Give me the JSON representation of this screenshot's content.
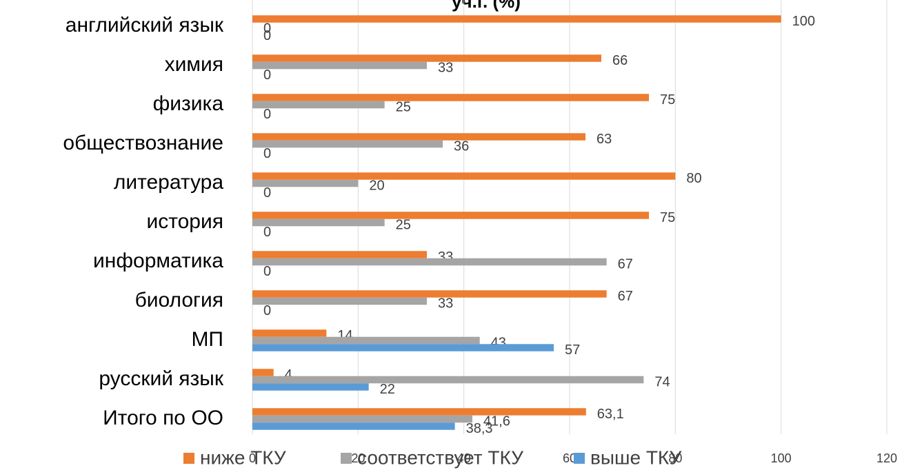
{
  "chart_data": {
    "type": "hbar",
    "title": "уч.г. (%)",
    "categories": [
      "английский язык",
      "химия",
      "физика",
      "обществознание",
      "литература",
      "история",
      "информатика",
      "биология",
      "МП",
      "русский язык",
      "Итого по ОО"
    ],
    "series": [
      {
        "name": "ниже ТКУ",
        "color": "#ED7D31",
        "values": [
          100,
          66,
          75,
          63,
          80,
          75,
          33,
          67,
          14,
          4,
          63.1
        ],
        "value_labels": [
          "100",
          "66",
          "75",
          "63",
          "80",
          "75",
          "33",
          "67",
          "14",
          "4",
          "63,1"
        ]
      },
      {
        "name": "соответствует ТКУ",
        "color": "#A5A5A5",
        "values": [
          0,
          33,
          25,
          36,
          20,
          25,
          67,
          33,
          43,
          74,
          41.6
        ],
        "value_labels": [
          "0",
          "33",
          "25",
          "36",
          "20",
          "25",
          "67",
          "33",
          "43",
          "74",
          "41,6"
        ]
      },
      {
        "name": "выше ТКУ",
        "color": "#5B9BD5",
        "values": [
          0,
          0,
          0,
          0,
          0,
          0,
          0,
          0,
          57,
          22,
          38.3
        ],
        "value_labels": [
          "0",
          "0",
          "0",
          "0",
          "0",
          "0",
          "0",
          "0",
          "57",
          "22",
          "38,3"
        ]
      }
    ],
    "xlim": [
      0,
      120
    ],
    "xticks": [
      0,
      20,
      40,
      60,
      80,
      100,
      120
    ],
    "grid": true,
    "legend": "bottom"
  }
}
